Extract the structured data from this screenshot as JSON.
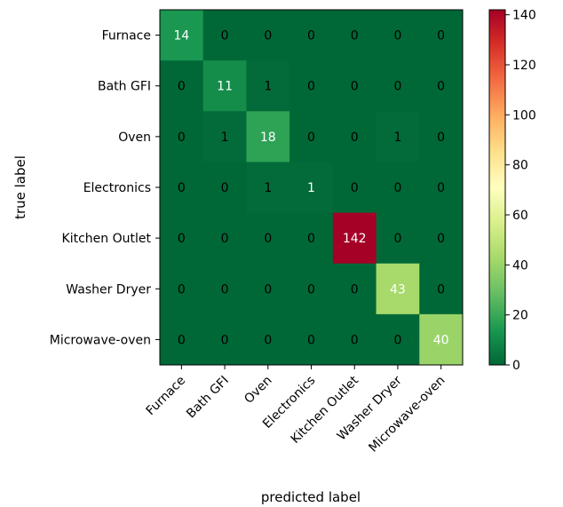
{
  "chart_data": {
    "type": "heatmap",
    "title": "",
    "xlabel": "predicted label",
    "ylabel": "true label",
    "row_labels": [
      "Furnace",
      "Bath GFI",
      "Oven",
      "Electronics",
      "Kitchen Outlet",
      "Washer Dryer",
      "Microwave-oven"
    ],
    "col_labels": [
      "Furnace",
      "Bath GFI",
      "Oven",
      "Electronics",
      "Kitchen Outlet",
      "Washer Dryer",
      "Microwave-oven"
    ],
    "values": [
      [
        14,
        0,
        0,
        0,
        0,
        0,
        0
      ],
      [
        0,
        11,
        1,
        0,
        0,
        0,
        0
      ],
      [
        0,
        1,
        18,
        0,
        0,
        1,
        0
      ],
      [
        0,
        0,
        1,
        1,
        0,
        0,
        0
      ],
      [
        0,
        0,
        0,
        0,
        142,
        0,
        0
      ],
      [
        0,
        0,
        0,
        0,
        0,
        43,
        0
      ],
      [
        0,
        0,
        0,
        0,
        0,
        0,
        40
      ]
    ],
    "colormap": "RdYlGn_r",
    "vmin": 0,
    "vmax": 142,
    "colorbar_ticks": [
      0,
      20,
      40,
      60,
      80,
      100,
      120,
      140
    ],
    "grid": false
  }
}
